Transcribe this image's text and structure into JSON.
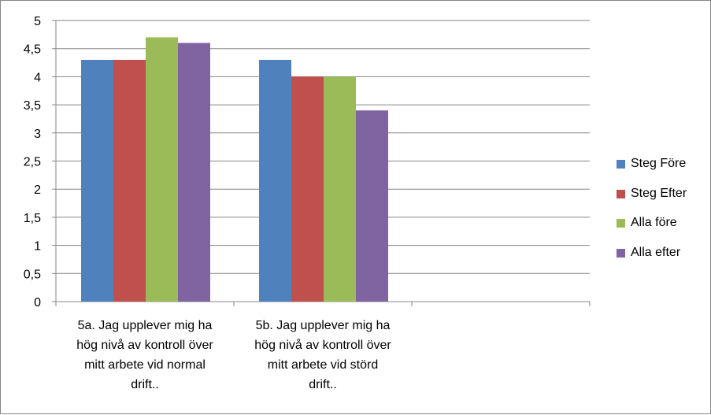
{
  "chart_data": {
    "type": "bar",
    "categories": [
      "5a. Jag upplever mig ha hög nivå av kontroll över mitt arbete vid normal drift..",
      "5b. Jag upplever mig ha hög nivå av kontroll över mitt arbete vid störd drift..",
      ""
    ],
    "category_lines": [
      [
        "5a. Jag upplever mig ha",
        "hög nivå av kontroll över",
        "mitt arbete vid normal",
        "drift.."
      ],
      [
        "5b. Jag upplever mig ha",
        "hög nivå av kontroll över",
        "mitt arbete vid störd",
        "drift.."
      ],
      []
    ],
    "series": [
      {
        "name": "Steg Före",
        "color": "#4F81BD",
        "values": [
          4.3,
          4.3,
          null
        ]
      },
      {
        "name": "Steg Efter",
        "color": "#C0504D",
        "values": [
          4.3,
          4.0,
          null
        ]
      },
      {
        "name": "Alla före",
        "color": "#9BBB59",
        "values": [
          4.7,
          4.0,
          null
        ]
      },
      {
        "name": "Alla efter",
        "color": "#8064A2",
        "values": [
          4.6,
          3.4,
          null
        ]
      }
    ],
    "yticks": [
      "0",
      "0,5",
      "1",
      "1,5",
      "2",
      "2,5",
      "3",
      "3,5",
      "4",
      "4,5",
      "5"
    ],
    "ylim": [
      0,
      5
    ],
    "ystep": 0.5,
    "grid": true,
    "legend": "right"
  }
}
